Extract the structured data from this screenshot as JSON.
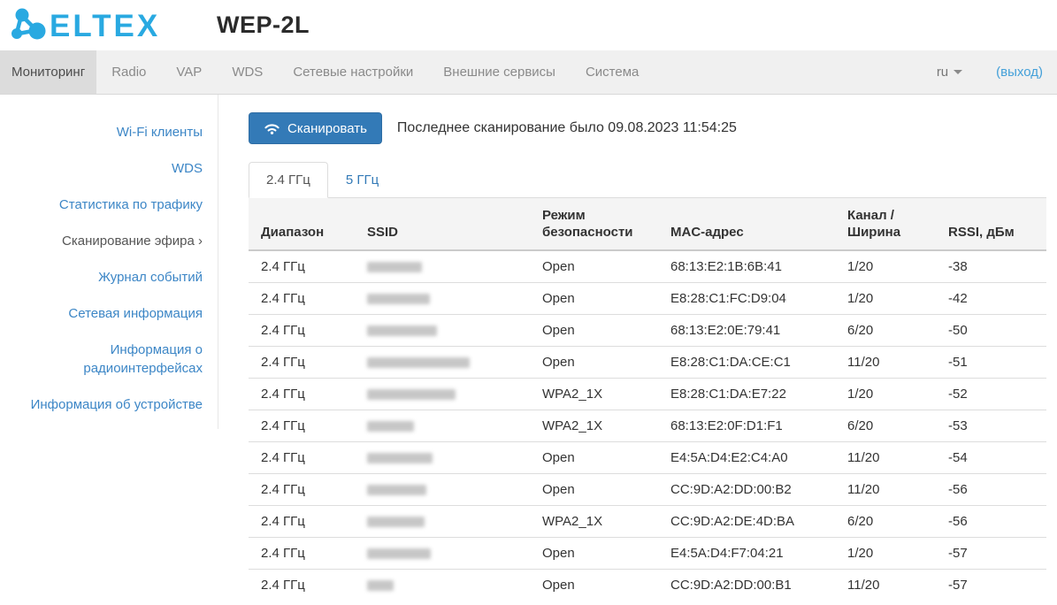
{
  "colors": {
    "brand_logo": "#29a9e1",
    "accent_button": "#337ab7",
    "link_blue": "#3c86c6",
    "logout_blue": "#44a0d9",
    "navbar_bg": "#f0f0f0",
    "nav_active_bg": "#dcdcdc",
    "table_header_bg": "#f4f4f4"
  },
  "icons": {
    "logo": "eltex-molecule-icon",
    "scan_button": "wifi-icon",
    "language_caret": "caret-down-icon",
    "sidebar_active_chevron": "chevron-right-icon"
  },
  "header": {
    "logo_text": "ELTEX",
    "device_model": "WEP-2L"
  },
  "navbar": {
    "items": [
      {
        "label": "Мониторинг",
        "active": true
      },
      {
        "label": "Radio"
      },
      {
        "label": "VAP"
      },
      {
        "label": "WDS"
      },
      {
        "label": "Сетевые настройки"
      },
      {
        "label": "Внешние сервисы"
      },
      {
        "label": "Система"
      }
    ],
    "language_value": "ru",
    "logout_label": "(выход)"
  },
  "sidebar": {
    "items": [
      {
        "label": "Wi-Fi клиенты"
      },
      {
        "label": "WDS"
      },
      {
        "label": "Статистика по трафику"
      },
      {
        "label": "Сканирование эфира",
        "chevron": " ›",
        "active": true
      },
      {
        "label": "Журнал событий"
      },
      {
        "label": "Сетевая информация"
      },
      {
        "label": "Информация о радиоинтерфейсах"
      },
      {
        "label": "Информация об устройстве"
      }
    ]
  },
  "scan": {
    "button_label": "Сканировать",
    "last_scan_text": "Последнее сканирование было 09.08.2023 11:54:25"
  },
  "tabs": {
    "items": [
      {
        "label": "2.4 ГГц",
        "active": true
      },
      {
        "label": "5 ГГц"
      }
    ]
  },
  "table": {
    "columns": [
      {
        "label": "Диапазон"
      },
      {
        "label": "SSID"
      },
      {
        "label": "Режим безопасности"
      },
      {
        "label": "MAC-адрес"
      },
      {
        "label": "Канал / Ширина"
      },
      {
        "label": "RSSI, дБм"
      }
    ],
    "rows": [
      {
        "band": "2.4 ГГц",
        "ssid_redacted": true,
        "ssid_blur_width": 62,
        "security": "Open",
        "mac": "68:13:E2:1B:6B:41",
        "channel": "1/20",
        "rssi": "-38"
      },
      {
        "band": "2.4 ГГц",
        "ssid_redacted": true,
        "ssid_blur_width": 71,
        "security": "Open",
        "mac": "E8:28:C1:FC:D9:04",
        "channel": "1/20",
        "rssi": "-42"
      },
      {
        "band": "2.4 ГГц",
        "ssid_redacted": true,
        "ssid_blur_width": 79,
        "security": "Open",
        "mac": "68:13:E2:0E:79:41",
        "channel": "6/20",
        "rssi": "-50"
      },
      {
        "band": "2.4 ГГц",
        "ssid_redacted": true,
        "ssid_blur_width": 116,
        "security": "Open",
        "mac": "E8:28:C1:DA:CE:C1",
        "channel": "11/20",
        "rssi": "-51"
      },
      {
        "band": "2.4 ГГц",
        "ssid_redacted": true,
        "ssid_blur_width": 100,
        "security": "WPA2_1X",
        "mac": "E8:28:C1:DA:E7:22",
        "channel": "1/20",
        "rssi": "-52"
      },
      {
        "band": "2.4 ГГц",
        "ssid_redacted": true,
        "ssid_blur_width": 53,
        "security": "WPA2_1X",
        "mac": "68:13:E2:0F:D1:F1",
        "channel": "6/20",
        "rssi": "-53"
      },
      {
        "band": "2.4 ГГц",
        "ssid_redacted": true,
        "ssid_blur_width": 74,
        "security": "Open",
        "mac": "E4:5A:D4:E2:C4:A0",
        "channel": "11/20",
        "rssi": "-54"
      },
      {
        "band": "2.4 ГГц",
        "ssid_redacted": true,
        "ssid_blur_width": 67,
        "security": "Open",
        "mac": "CC:9D:A2:DD:00:B2",
        "channel": "11/20",
        "rssi": "-56"
      },
      {
        "band": "2.4 ГГц",
        "ssid_redacted": true,
        "ssid_blur_width": 65,
        "security": "WPA2_1X",
        "mac": "CC:9D:A2:DE:4D:BA",
        "channel": "6/20",
        "rssi": "-56"
      },
      {
        "band": "2.4 ГГц",
        "ssid_redacted": true,
        "ssid_blur_width": 72,
        "security": "Open",
        "mac": "E4:5A:D4:F7:04:21",
        "channel": "1/20",
        "rssi": "-57"
      },
      {
        "band": "2.4 ГГц",
        "ssid_redacted": true,
        "ssid_blur_width": 30,
        "security": "Open",
        "mac": "CC:9D:A2:DD:00:B1",
        "channel": "11/20",
        "rssi": "-57"
      }
    ]
  }
}
